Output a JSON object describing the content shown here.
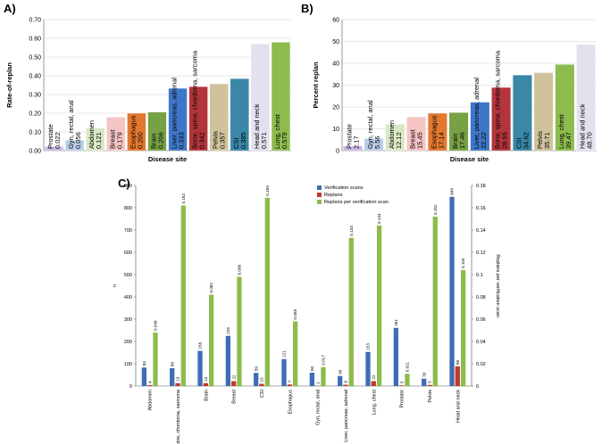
{
  "panels": {
    "a": "A)",
    "b": "B)",
    "c": "C)"
  },
  "chart_data": [
    {
      "type": "bar",
      "title": "",
      "xlabel": "Disease site",
      "ylabel": "Rate-of-replan",
      "ylim": [
        0,
        0.7
      ],
      "yticks": [
        "0.00",
        "0.10",
        "0.20",
        "0.30",
        "0.40",
        "0.50",
        "0.60",
        "0.70"
      ],
      "categories": [
        "Prostate",
        "Gyn, rectal, anal",
        "Abdomen",
        "Breast",
        "Esophagus",
        "Brain",
        "Liver, pancreas, adrenal",
        "Bone, spine, chordoma, sarcoma",
        "Pelvis",
        "CSI",
        "Head and neck",
        "Lung, chest"
      ],
      "values": [
        0.022,
        0.056,
        0.121,
        0.179,
        0.2,
        0.206,
        0.333,
        0.342,
        0.357,
        0.385,
        0.571,
        0.579
      ],
      "value_labels": [
        "0.022",
        "0.056",
        "0.121",
        "0.179",
        "0.200",
        "0.206",
        "0.333",
        "0.342",
        "0.357",
        "0.385",
        "0.571",
        "0.579"
      ],
      "colors": [
        "#c9b8e2",
        "#b9cde8",
        "#d9e8c4",
        "#f6c4c4",
        "#e3782f",
        "#77a145",
        "#3f77c8",
        "#b3353c",
        "#d0c39c",
        "#3a87a7",
        "#e4e1ef",
        "#8dbb4e"
      ]
    },
    {
      "type": "bar",
      "title": "",
      "xlabel": "Disease site",
      "ylabel": "Percent replan",
      "ylim": [
        0,
        60
      ],
      "yticks": [
        "0",
        "10",
        "20",
        "30",
        "40",
        "50",
        "60"
      ],
      "categories": [
        "Prostate",
        "Gyn, rectal, anal",
        "Abdomen",
        "Breast",
        "Esophagus",
        "Brain",
        "Liver, pancreas, adrenal",
        "Bone, spine, chordoma, sarcoma",
        "CSI",
        "Pelvis",
        "Lung, chest",
        "Head and neck"
      ],
      "values": [
        2.17,
        5.56,
        12.12,
        15.45,
        17.14,
        17.46,
        22.22,
        28.95,
        34.62,
        35.71,
        39.47,
        48.7
      ],
      "value_labels": [
        "2.17",
        "5.56",
        "12.12",
        "15.45",
        "17.14",
        "17.46",
        "22.22",
        "28.95",
        "34.62",
        "35.71",
        "39.47",
        "48.70"
      ],
      "colors": [
        "#c9b8e2",
        "#b9cde8",
        "#d9e8c4",
        "#f6c4c4",
        "#e3782f",
        "#77a145",
        "#3f77c8",
        "#b3353c",
        "#3a87a7",
        "#d0c39c",
        "#8dbb4e",
        "#e4e1ef"
      ]
    },
    {
      "type": "bar",
      "title": "",
      "xlabel": "",
      "ylabel": "n",
      "y2label": "Replans per verification scan",
      "ylim": [
        0,
        900
      ],
      "y2lim": [
        0,
        0.18
      ],
      "yticks": [
        "0",
        "100",
        "200",
        "300",
        "400",
        "500",
        "600",
        "700",
        "800",
        "900"
      ],
      "y2ticks": [
        "0",
        "0.02",
        "0.04",
        "0.06",
        "0.08",
        "0.1",
        "0.12",
        "0.14",
        "0.16",
        "0.18"
      ],
      "categories": [
        "Abdomen",
        "Bone, spine, chordoma, sarcoma",
        "Brain",
        "Breast",
        "CSI",
        "Esophagus",
        "Gyn, rectal, anal",
        "Liver, pancreas, adrenal",
        "Lung, chest",
        "Prostate",
        "Pelvis",
        "Head and neck"
      ],
      "series": [
        {
          "name": "Verification scans",
          "axis": "left",
          "color": "#3e6db5",
          "values": [
            83,
            80,
            158,
            225,
            59,
            121,
            60,
            45,
            153,
            261,
            33,
            849
          ],
          "labels": [
            "83",
            "80",
            "158",
            "225",
            "59",
            "121",
            "60",
            "45",
            "153",
            "261",
            "33",
            "849"
          ]
        },
        {
          "name": "Replans",
          "axis": "left",
          "color": "#c0392b",
          "values": [
            4,
            13,
            13,
            22,
            10,
            7,
            1,
            6,
            22,
            3,
            5,
            88
          ],
          "labels": [
            "4",
            "13",
            "13",
            "22",
            "10",
            "7",
            "1",
            "6",
            "22",
            "3",
            "5",
            "88"
          ]
        },
        {
          "name": "Replans per verification scan",
          "axis": "right",
          "color": "#8dbb4e",
          "values": [
            0.048,
            0.162,
            0.082,
            0.098,
            0.169,
            0.058,
            0.017,
            0.133,
            0.144,
            0.011,
            0.152,
            0.104
          ],
          "labels": [
            "0.048",
            "0.162",
            "0.082",
            "0.098",
            "0.169",
            "0.058",
            "0.017",
            "0.133",
            "0.144",
            "0.011",
            "0.152",
            "0.104"
          ]
        }
      ],
      "legend": "top-right"
    }
  ]
}
